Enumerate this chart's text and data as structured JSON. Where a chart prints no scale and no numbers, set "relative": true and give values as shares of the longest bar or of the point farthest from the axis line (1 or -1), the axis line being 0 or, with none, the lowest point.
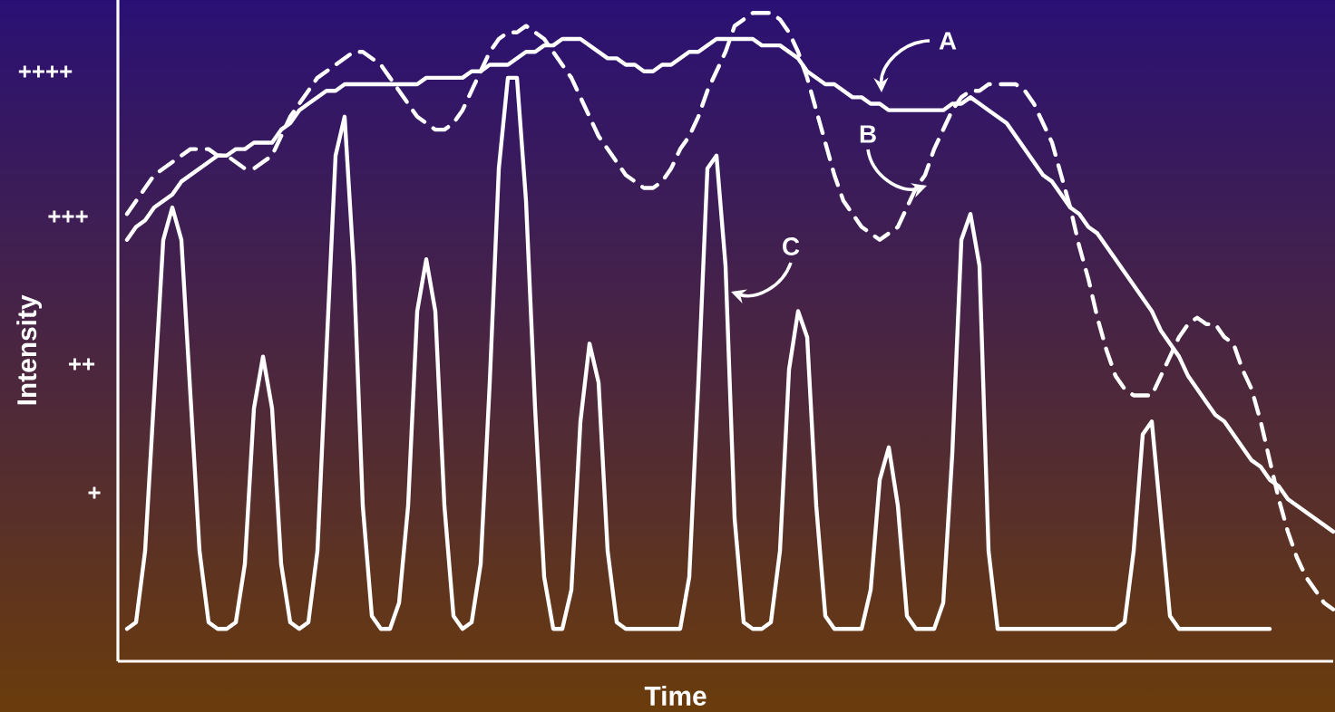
{
  "chart_data": {
    "type": "line",
    "relative": true,
    "xlabel": "Time",
    "ylabel": "Intensity",
    "annotations": [
      "+",
      "++",
      "+++",
      "++++"
    ],
    "marker": "none",
    "line_style": "solid",
    "categories": [
      null,
      null,
      null,
      null,
      null,
      null,
      null,
      null,
      null,
      null,
      null,
      null,
      null,
      null,
      null,
      null,
      null,
      null,
      null,
      null,
      null,
      null,
      null,
      null,
      null,
      null,
      null,
      null,
      null,
      null,
      null,
      null,
      null,
      null,
      null,
      null,
      null,
      null,
      null,
      null,
      null,
      null,
      null,
      null,
      null,
      null,
      null,
      null,
      null,
      null,
      null,
      null,
      null,
      null,
      null,
      null,
      null,
      null,
      null,
      null,
      null,
      null,
      null,
      null,
      null,
      null,
      null,
      null,
      null,
      null,
      null,
      null,
      null,
      null,
      null,
      null,
      null,
      null,
      null,
      null,
      null,
      null,
      null,
      null,
      null,
      null,
      null,
      null,
      null,
      null,
      null,
      null,
      null,
      null,
      null,
      null,
      null,
      null,
      null,
      null,
      null,
      null,
      null,
      null,
      null,
      null,
      null,
      null,
      null,
      null,
      null,
      null,
      null,
      null,
      null,
      null,
      null,
      null,
      null,
      null,
      null,
      null,
      null,
      null,
      null,
      null,
      null,
      null,
      null,
      null,
      null,
      null,
      null,
      null
    ],
    "series": [
      {
        "name": "A",
        "color": "#ffffff",
        "values": [
          0.65,
          0.67,
          0.68,
          0.7,
          0.71,
          0.72,
          0.74,
          0.75,
          0.76,
          0.77,
          0.78,
          0.78,
          0.79,
          0.79,
          0.8,
          0.8,
          0.8,
          0.82,
          0.83,
          0.85,
          0.86,
          0.87,
          0.88,
          0.88,
          0.89,
          0.89,
          0.89,
          0.89,
          0.89,
          0.89,
          0.89,
          0.89,
          0.89,
          0.9,
          0.9,
          0.9,
          0.9,
          0.9,
          0.91,
          0.91,
          0.92,
          0.92,
          0.92,
          0.93,
          0.94,
          0.94,
          0.95,
          0.95,
          0.96,
          0.96,
          0.96,
          0.95,
          0.94,
          0.93,
          0.93,
          0.92,
          0.92,
          0.91,
          0.91,
          0.92,
          0.92,
          0.93,
          0.94,
          0.94,
          0.95,
          0.96,
          0.96,
          0.96,
          0.96,
          0.96,
          0.95,
          0.95,
          0.95,
          0.94,
          0.93,
          0.91,
          0.9,
          0.89,
          0.89,
          0.88,
          0.87,
          0.87,
          0.86,
          0.86,
          0.85,
          0.85,
          0.85,
          0.85,
          0.85,
          0.85,
          0.85,
          0.86,
          0.86,
          0.87,
          0.86,
          0.85,
          0.84,
          0.83,
          0.81,
          0.79,
          0.77,
          0.75,
          0.74,
          0.72,
          0.7,
          0.69,
          0.67,
          0.66,
          0.64,
          0.62,
          0.6,
          0.58,
          0.56,
          0.54,
          0.51,
          0.49,
          0.47,
          0.44,
          0.42,
          0.4,
          0.38,
          0.37,
          0.35,
          0.33,
          0.31,
          0.3,
          0.28,
          0.27,
          0.25,
          0.24,
          0.23,
          0.22,
          0.21,
          0.2
        ]
      },
      {
        "name": "B",
        "color": "#ffffff",
        "line_style": "dashed",
        "values": [
          0.69,
          0.71,
          0.73,
          0.75,
          0.76,
          0.77,
          0.78,
          0.79,
          0.79,
          0.79,
          0.78,
          0.78,
          0.77,
          0.76,
          0.76,
          0.77,
          0.78,
          0.81,
          0.84,
          0.86,
          0.88,
          0.9,
          0.91,
          0.92,
          0.93,
          0.94,
          0.94,
          0.93,
          0.92,
          0.9,
          0.88,
          0.86,
          0.84,
          0.83,
          0.82,
          0.82,
          0.83,
          0.85,
          0.88,
          0.91,
          0.94,
          0.96,
          0.97,
          0.97,
          0.98,
          0.97,
          0.96,
          0.94,
          0.92,
          0.9,
          0.87,
          0.84,
          0.81,
          0.79,
          0.77,
          0.75,
          0.74,
          0.73,
          0.73,
          0.74,
          0.76,
          0.79,
          0.81,
          0.84,
          0.88,
          0.91,
          0.94,
          0.98,
          0.99,
          1.0,
          1.0,
          1.0,
          0.99,
          0.97,
          0.94,
          0.9,
          0.85,
          0.8,
          0.75,
          0.71,
          0.69,
          0.67,
          0.66,
          0.65,
          0.66,
          0.67,
          0.7,
          0.73,
          0.75,
          0.79,
          0.82,
          0.85,
          0.87,
          0.88,
          0.88,
          0.89,
          0.89,
          0.89,
          0.89,
          0.88,
          0.86,
          0.83,
          0.8,
          0.75,
          0.7,
          0.64,
          0.59,
          0.53,
          0.48,
          0.44,
          0.42,
          0.41,
          0.41,
          0.41,
          0.44,
          0.47,
          0.5,
          0.52,
          0.53,
          0.52,
          0.52,
          0.5,
          0.49,
          0.45,
          0.42,
          0.37,
          0.31,
          0.25,
          0.2,
          0.16,
          0.13,
          0.11,
          0.09,
          0.08
        ]
      },
      {
        "name": "C",
        "color": "#ffffff",
        "values": [
          0.05,
          0.06,
          0.17,
          0.41,
          0.65,
          0.7,
          0.65,
          0.41,
          0.17,
          0.06,
          0.05,
          0.05,
          0.06,
          0.15,
          0.39,
          0.47,
          0.39,
          0.15,
          0.06,
          0.05,
          0.06,
          0.17,
          0.48,
          0.78,
          0.84,
          0.61,
          0.24,
          0.07,
          0.05,
          0.05,
          0.09,
          0.24,
          0.54,
          0.62,
          0.54,
          0.24,
          0.07,
          0.05,
          0.06,
          0.15,
          0.43,
          0.76,
          0.9,
          0.9,
          0.71,
          0.39,
          0.13,
          0.05,
          0.05,
          0.11,
          0.37,
          0.49,
          0.43,
          0.17,
          0.06,
          0.05,
          0.05,
          0.05,
          0.05,
          0.05,
          0.05,
          0.05,
          0.13,
          0.43,
          0.76,
          0.78,
          0.61,
          0.22,
          0.06,
          0.05,
          0.05,
          0.06,
          0.17,
          0.45,
          0.54,
          0.5,
          0.24,
          0.07,
          0.05,
          0.05,
          0.05,
          0.05,
          0.11,
          0.28,
          0.33,
          0.24,
          0.07,
          0.05,
          0.05,
          0.05,
          0.09,
          0.32,
          0.65,
          0.69,
          0.61,
          0.17,
          0.05,
          0.05,
          0.05,
          0.05,
          0.05,
          0.05,
          0.05,
          0.05,
          0.05,
          0.05,
          0.05,
          0.05,
          0.05,
          0.05,
          0.06,
          0.17,
          0.35,
          0.37,
          0.22,
          0.07,
          0.05,
          0.05,
          0.05,
          0.05,
          0.05,
          0.05,
          0.05,
          0.05,
          0.05,
          0.05,
          0.05,
          null,
          null,
          null,
          null,
          null,
          null,
          null
        ]
      }
    ]
  }
}
